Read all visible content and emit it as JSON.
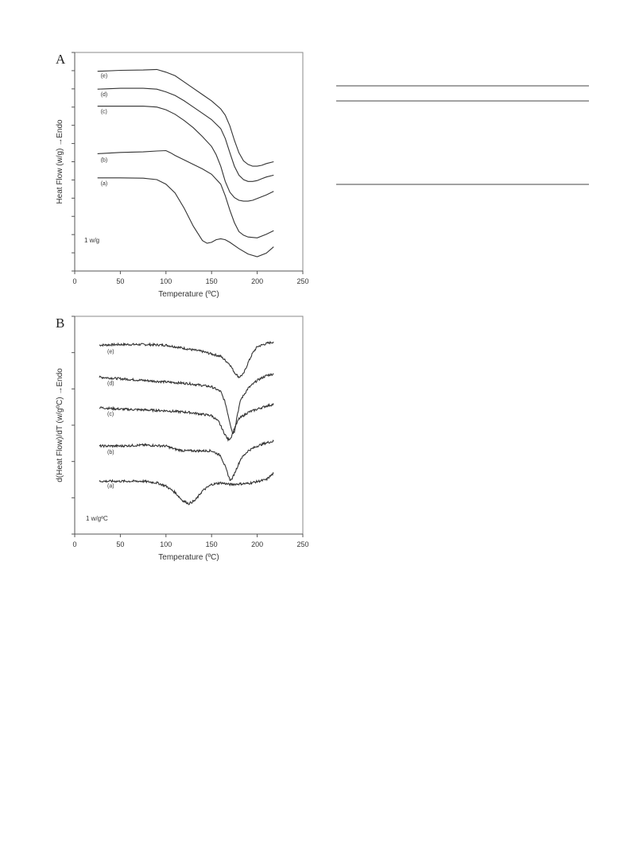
{
  "chart_data": [
    {
      "type": "line",
      "panel": "A",
      "title": "",
      "xlabel": "Temperature (ºC)",
      "ylabel": "Heat Flow (w/g) →Endo",
      "xlim": [
        0,
        250
      ],
      "x_ticks": [
        "0",
        "50",
        "100",
        "150",
        "200",
        "250"
      ],
      "y_tick_count": 12,
      "scale_annotation": "1 w/g",
      "grid": false,
      "series": [
        {
          "label": "(e)",
          "x": [
            25,
            50,
            75,
            90,
            100,
            110,
            120,
            130,
            140,
            150,
            160,
            165,
            170,
            175,
            180,
            185,
            190,
            195,
            200,
            205,
            210,
            218
          ],
          "y": [
            9.15,
            9.2,
            9.22,
            9.25,
            9.1,
            8.9,
            8.55,
            8.2,
            7.85,
            7.5,
            7.05,
            6.7,
            6.1,
            5.3,
            4.6,
            4.15,
            3.95,
            3.85,
            3.85,
            3.9,
            4.0,
            4.1
          ]
        },
        {
          "label": "(d)",
          "x": [
            25,
            50,
            75,
            90,
            100,
            110,
            120,
            130,
            140,
            150,
            160,
            165,
            170,
            175,
            180,
            185,
            190,
            195,
            200,
            205,
            210,
            218
          ],
          "y": [
            8.15,
            8.2,
            8.2,
            8.15,
            8.0,
            7.8,
            7.5,
            7.15,
            6.8,
            6.45,
            5.95,
            5.4,
            4.6,
            3.85,
            3.35,
            3.1,
            3.0,
            3.0,
            3.05,
            3.15,
            3.25,
            3.35
          ]
        },
        {
          "label": "(c)",
          "x": [
            25,
            50,
            75,
            90,
            100,
            110,
            120,
            130,
            140,
            150,
            155,
            160,
            165,
            170,
            175,
            180,
            185,
            190,
            195,
            200,
            210,
            218
          ],
          "y": [
            7.2,
            7.2,
            7.2,
            7.15,
            7.0,
            6.75,
            6.4,
            6.0,
            5.5,
            4.95,
            4.5,
            3.85,
            3.0,
            2.4,
            2.1,
            1.95,
            1.9,
            1.9,
            1.95,
            2.05,
            2.25,
            2.45
          ]
        },
        {
          "label": "(b)",
          "x": [
            25,
            50,
            75,
            90,
            100,
            105,
            110,
            120,
            130,
            140,
            150,
            160,
            165,
            170,
            175,
            180,
            185,
            190,
            200,
            210,
            218
          ],
          "y": [
            4.55,
            4.62,
            4.65,
            4.7,
            4.72,
            4.6,
            4.45,
            4.2,
            3.95,
            3.7,
            3.4,
            2.85,
            2.2,
            1.4,
            0.7,
            0.2,
            0.0,
            -0.1,
            -0.15,
            0.05,
            0.25
          ]
        },
        {
          "label": "(a)",
          "x": [
            25,
            50,
            75,
            90,
            100,
            110,
            120,
            130,
            140,
            145,
            150,
            155,
            160,
            165,
            170,
            180,
            190,
            200,
            210,
            218
          ],
          "y": [
            3.2,
            3.2,
            3.18,
            3.1,
            2.85,
            2.35,
            1.5,
            0.5,
            -0.3,
            -0.45,
            -0.4,
            -0.25,
            -0.2,
            -0.25,
            -0.4,
            -0.75,
            -1.05,
            -1.2,
            -1.0,
            -0.65
          ]
        }
      ]
    },
    {
      "type": "line",
      "panel": "B",
      "title": "",
      "xlabel": "Temperature (ºC)",
      "ylabel": "d(Heat Flow)/dT (w/gºC) →Endo",
      "xlim": [
        0,
        250
      ],
      "x_ticks": [
        "0",
        "50",
        "100",
        "150",
        "200",
        "250"
      ],
      "y_tick_count": 6,
      "scale_annotation": "1 w/gºC",
      "grid": false,
      "series": [
        {
          "label": "(e)",
          "x": [
            27,
            50,
            75,
            100,
            120,
            140,
            160,
            170,
            175,
            180,
            185,
            190,
            195,
            200,
            210,
            218
          ],
          "y": [
            5.3,
            5.32,
            5.32,
            5.3,
            5.2,
            5.1,
            4.95,
            4.7,
            4.45,
            4.3,
            4.4,
            4.75,
            5.05,
            5.25,
            5.35,
            5.4
          ]
        },
        {
          "label": "(d)",
          "x": [
            27,
            50,
            75,
            100,
            125,
            150,
            160,
            165,
            170,
            173,
            175,
            178,
            182,
            190,
            200,
            210,
            218
          ],
          "y": [
            4.3,
            4.25,
            4.2,
            4.15,
            4.1,
            4.0,
            3.85,
            3.5,
            2.9,
            2.55,
            2.6,
            3.1,
            3.6,
            3.95,
            4.2,
            4.35,
            4.4
          ]
        },
        {
          "label": "(c)",
          "x": [
            27,
            50,
            75,
            100,
            125,
            150,
            158,
            163,
            168,
            171,
            175,
            180,
            190,
            200,
            210,
            218
          ],
          "y": [
            3.35,
            3.3,
            3.28,
            3.25,
            3.2,
            3.1,
            2.9,
            2.6,
            2.35,
            2.4,
            2.7,
            3.0,
            3.2,
            3.3,
            3.4,
            3.45
          ]
        },
        {
          "label": "(b)",
          "x": [
            27,
            50,
            75,
            100,
            110,
            120,
            150,
            160,
            165,
            170,
            172,
            176,
            182,
            190,
            200,
            210,
            218
          ],
          "y": [
            2.15,
            2.15,
            2.18,
            2.15,
            2.05,
            2.0,
            2.0,
            1.85,
            1.5,
            1.1,
            1.1,
            1.35,
            1.75,
            2.0,
            2.15,
            2.25,
            2.3
          ]
        },
        {
          "label": "(a)",
          "x": [
            27,
            50,
            75,
            90,
            100,
            110,
            118,
            125,
            132,
            140,
            150,
            160,
            170,
            190,
            210,
            218
          ],
          "y": [
            1.05,
            1.05,
            1.05,
            1.0,
            0.9,
            0.7,
            0.45,
            0.35,
            0.45,
            0.75,
            0.95,
            1.0,
            0.95,
            0.98,
            1.1,
            1.3
          ]
        }
      ]
    }
  ]
}
